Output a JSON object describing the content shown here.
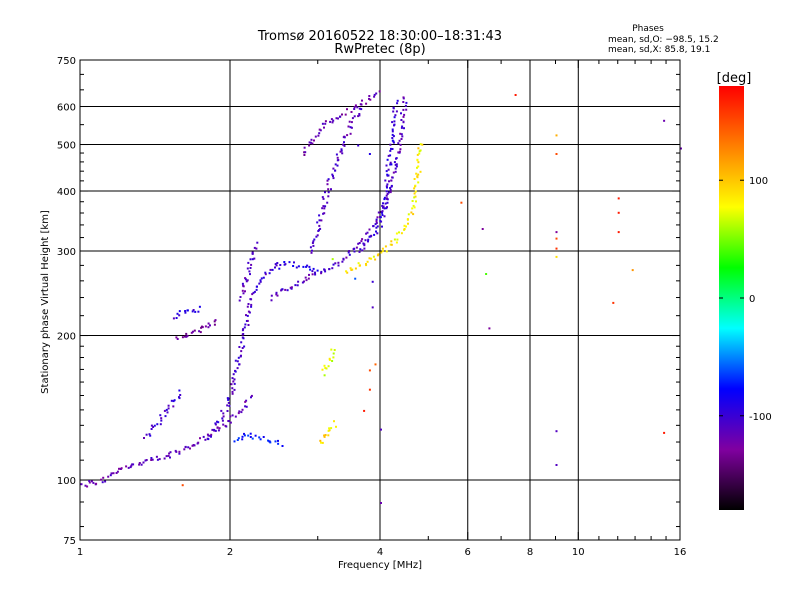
{
  "chart_data": {
    "type": "scatter",
    "title": "Tromsø 20160522 18:30:00–18:31:43",
    "subtitle": "RwPretec (8p)",
    "xlabel": "Frequency [MHz]",
    "ylabel": "Stationary phase Virtual Height [km]",
    "x_scale": "log",
    "y_scale": "log",
    "xlim": [
      1,
      16
    ],
    "ylim": [
      75,
      750
    ],
    "x_ticks": [
      1,
      2,
      4,
      6,
      8,
      10,
      16
    ],
    "y_ticks": [
      75,
      100,
      200,
      300,
      400,
      500,
      600,
      750
    ],
    "x_gridlines": [
      2,
      4,
      6,
      8,
      10
    ],
    "y_gridlines": [
      100,
      200,
      300,
      400,
      500,
      600
    ],
    "grid": true,
    "stats": {
      "heading": "Phases",
      "line_o": "mean, sd,O: −98.5, 15.2",
      "line_x": "mean, sd,X:  85.8, 19.1"
    },
    "colorbar": {
      "label": "[deg]",
      "range": [
        -180,
        180
      ],
      "ticks": [
        100,
        0,
        -100
      ],
      "gradient": [
        "#000000",
        "#8000a0",
        "#0000ff",
        "#00ffff",
        "#00ff00",
        "#ffff00",
        "#ff8000",
        "#ff0000"
      ]
    },
    "series": [
      {
        "mode": "O",
        "phase_mean": -98.5,
        "phase_sd": 15.2,
        "traces": [
          {
            "points": [
              [
                1.0,
                98
              ],
              [
                1.05,
                99
              ],
              [
                1.1,
                100
              ],
              [
                1.15,
                103
              ],
              [
                1.2,
                106
              ],
              [
                1.3,
                108
              ],
              [
                1.4,
                111
              ],
              [
                1.5,
                113
              ],
              [
                1.6,
                116
              ],
              [
                1.7,
                120
              ],
              [
                1.8,
                124
              ],
              [
                1.9,
                128
              ],
              [
                2.0,
                134
              ],
              [
                2.1,
                142
              ],
              [
                2.2,
                150
              ]
            ],
            "phase": -115
          },
          {
            "points": [
              [
                1.35,
                123
              ],
              [
                1.45,
                135
              ],
              [
                1.55,
                148
              ],
              [
                1.6,
                155
              ]
            ],
            "phase": -105
          },
          {
            "points": [
              [
                1.55,
                200
              ],
              [
                1.6,
                200
              ],
              [
                1.65,
                201
              ],
              [
                1.7,
                204
              ],
              [
                1.75,
                209
              ],
              [
                1.85,
                212
              ],
              [
                1.9,
                215
              ]
            ],
            "phase": -125
          },
          {
            "points": [
              [
                1.55,
                218
              ],
              [
                1.6,
                226
              ],
              [
                1.7,
                226
              ],
              [
                1.75,
                230
              ]
            ],
            "phase": -100
          },
          {
            "points": [
              [
                1.8,
                122
              ],
              [
                1.9,
                133
              ],
              [
                2.0,
                150
              ],
              [
                2.05,
                170
              ],
              [
                2.1,
                190
              ],
              [
                2.15,
                215
              ],
              [
                2.2,
                240
              ],
              [
                2.3,
                262
              ],
              [
                2.4,
                276
              ],
              [
                2.5,
                290
              ]
            ],
            "phase": -105
          },
          {
            "points": [
              [
                2.05,
                120
              ],
              [
                2.15,
                125
              ],
              [
                2.3,
                123
              ],
              [
                2.45,
                121
              ],
              [
                2.55,
                119
              ]
            ],
            "phase": -75
          },
          {
            "points": [
              [
                2.1,
                240
              ],
              [
                2.15,
                265
              ],
              [
                2.2,
                290
              ],
              [
                2.25,
                315
              ]
            ],
            "phase": -110
          },
          {
            "points": [
              [
                2.4,
                240
              ],
              [
                2.5,
                248
              ],
              [
                2.7,
                255
              ],
              [
                2.9,
                266
              ],
              [
                3.1,
                277
              ],
              [
                3.3,
                285
              ],
              [
                3.5,
                300
              ],
              [
                3.7,
                318
              ],
              [
                3.8,
                330
              ],
              [
                3.9,
                345
              ],
              [
                4.0,
                360
              ],
              [
                4.1,
                380
              ],
              [
                4.2,
                410
              ],
              [
                4.3,
                450
              ],
              [
                4.35,
                500
              ],
              [
                4.4,
                550
              ],
              [
                4.45,
                600
              ],
              [
                4.45,
                640
              ]
            ],
            "phase": -110
          },
          {
            "points": [
              [
                2.5,
                280
              ],
              [
                2.6,
                285
              ],
              [
                2.8,
                280
              ],
              [
                3.0,
                272
              ]
            ],
            "phase": -90
          },
          {
            "points": [
              [
                2.8,
                480
              ],
              [
                2.9,
                510
              ],
              [
                3.0,
                540
              ],
              [
                3.2,
                565
              ],
              [
                3.4,
                585
              ],
              [
                3.6,
                605
              ],
              [
                3.8,
                625
              ],
              [
                4.0,
                645
              ]
            ],
            "phase": -120
          },
          {
            "points": [
              [
                2.9,
                300
              ],
              [
                3.0,
                340
              ],
              [
                3.1,
                390
              ],
              [
                3.2,
                440
              ],
              [
                3.3,
                480
              ],
              [
                3.4,
                520
              ],
              [
                3.5,
                555
              ],
              [
                3.6,
                580
              ],
              [
                3.7,
                600
              ]
            ],
            "phase": -110
          },
          {
            "points": [
              [
                3.6,
                300
              ],
              [
                3.8,
                320
              ],
              [
                4.0,
                345
              ],
              [
                4.1,
                390
              ],
              [
                4.15,
                450
              ],
              [
                4.2,
                500
              ],
              [
                4.25,
                560
              ],
              [
                4.3,
                620
              ]
            ],
            "phase": -100
          }
        ]
      },
      {
        "mode": "X",
        "phase_mean": 85.8,
        "phase_sd": 19.1,
        "traces": [
          {
            "points": [
              [
                3.4,
                273
              ],
              [
                3.6,
                280
              ],
              [
                3.8,
                288
              ],
              [
                4.0,
                298
              ],
              [
                4.2,
                310
              ],
              [
                4.4,
                330
              ],
              [
                4.6,
                360
              ],
              [
                4.7,
                400
              ],
              [
                4.75,
                450
              ],
              [
                4.8,
                510
              ]
            ],
            "phase": 85
          },
          {
            "points": [
              [
                3.0,
                120
              ],
              [
                3.1,
                123
              ],
              [
                3.15,
                127
              ],
              [
                3.2,
                130
              ],
              [
                3.25,
                133
              ]
            ],
            "phase": 90
          },
          {
            "points": [
              [
                3.05,
                168
              ],
              [
                3.15,
                175
              ],
              [
                3.2,
                190
              ]
            ],
            "phase": 70
          }
        ]
      }
    ],
    "scattered_points": [
      [
        3.55,
        264,
        -60
      ],
      [
        3.2,
        290,
        60
      ],
      [
        3.6,
        500,
        -100
      ],
      [
        3.8,
        480,
        -90
      ],
      [
        3.85,
        260,
        -100
      ],
      [
        3.85,
        230,
        -110
      ],
      [
        4.0,
        128,
        -110
      ],
      [
        4.0,
        90,
        -120
      ],
      [
        3.7,
        140,
        170
      ],
      [
        3.8,
        155,
        160
      ],
      [
        3.8,
        170,
        150
      ],
      [
        3.9,
        175,
        140
      ],
      [
        5.8,
        380,
        150
      ],
      [
        6.4,
        335,
        -130
      ],
      [
        6.5,
        270,
        40
      ],
      [
        6.6,
        208,
        -130
      ],
      [
        7.45,
        637,
        170
      ],
      [
        9.0,
        525,
        110
      ],
      [
        9.0,
        480,
        150
      ],
      [
        9.0,
        330,
        -130
      ],
      [
        9.0,
        320,
        150
      ],
      [
        9.0,
        305,
        160
      ],
      [
        9.0,
        293,
        90
      ],
      [
        9.0,
        127,
        -110
      ],
      [
        9.0,
        108,
        -110
      ],
      [
        12.0,
        388,
        170
      ],
      [
        12.0,
        362,
        170
      ],
      [
        12.0,
        330,
        170
      ],
      [
        11.7,
        235,
        160
      ],
      [
        12.8,
        275,
        120
      ],
      [
        14.8,
        563,
        -120
      ],
      [
        14.8,
        126,
        170
      ],
      [
        16.0,
        493,
        -120
      ],
      [
        1.6,
        98,
        150
      ]
    ]
  }
}
